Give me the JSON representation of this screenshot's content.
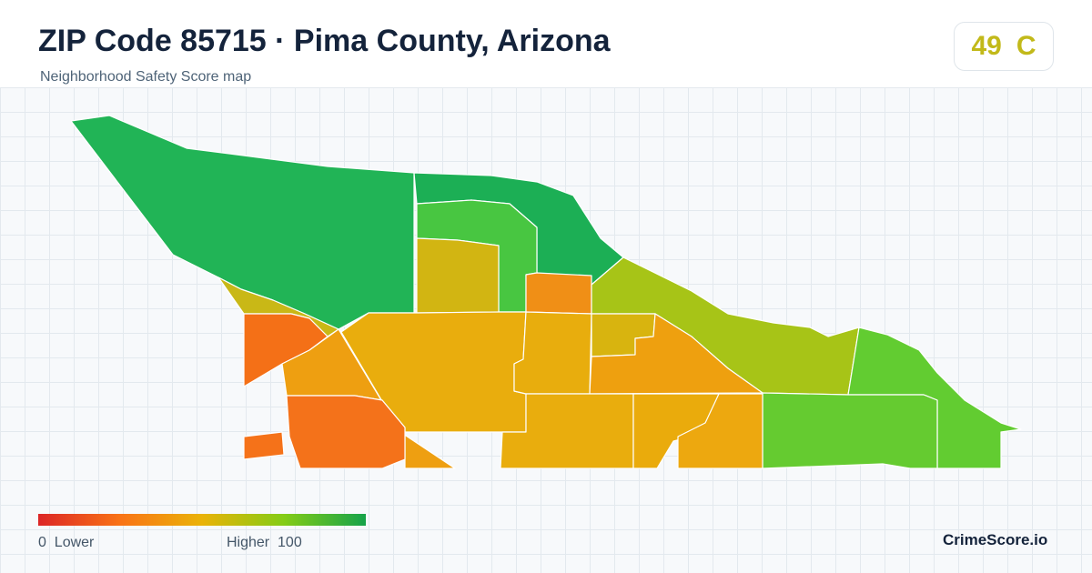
{
  "header": {
    "title": "ZIP Code 85715 · Pima County, Arizona",
    "subtitle": "Neighborhood Safety Score map"
  },
  "score_badge": {
    "score": "49",
    "grade": "C",
    "color": "#c2b91a"
  },
  "legend": {
    "low_value": "0",
    "low_label": "Lower",
    "high_label": "Higher",
    "high_value": "100",
    "colors": [
      "#dc2626",
      "#f97316",
      "#eab308",
      "#84cc16",
      "#16a34a"
    ]
  },
  "brand": "CrimeScore.io",
  "map": {
    "regions": [
      {
        "name": "northwest",
        "color": "#21b456"
      },
      {
        "name": "north-central",
        "color": "#1caf55"
      },
      {
        "name": "north-inner",
        "color": "#48c641"
      },
      {
        "name": "center-north",
        "color": "#d2b512"
      },
      {
        "name": "center-small",
        "color": "#f08f16"
      },
      {
        "name": "northeast-strip",
        "color": "#a7c417"
      },
      {
        "name": "far-east",
        "color": "#62cc31"
      },
      {
        "name": "east",
        "color": "#65cb30"
      },
      {
        "name": "west-thin",
        "color": "#c9b816"
      },
      {
        "name": "west",
        "color": "#f47017"
      },
      {
        "name": "west-small",
        "color": "#f57219"
      },
      {
        "name": "center-large",
        "color": "#e9ad0d"
      },
      {
        "name": "center-west",
        "color": "#ee9f11"
      },
      {
        "name": "southwest",
        "color": "#f4721a"
      },
      {
        "name": "center-mid",
        "color": "#e8ad0d"
      },
      {
        "name": "center-mid-small",
        "color": "#d8b40f"
      },
      {
        "name": "east-central",
        "color": "#eea00f"
      },
      {
        "name": "south-central",
        "color": "#e9ad0d"
      },
      {
        "name": "south-east-1",
        "color": "#eaab0c"
      },
      {
        "name": "south-east-2",
        "color": "#eda80f"
      }
    ]
  }
}
